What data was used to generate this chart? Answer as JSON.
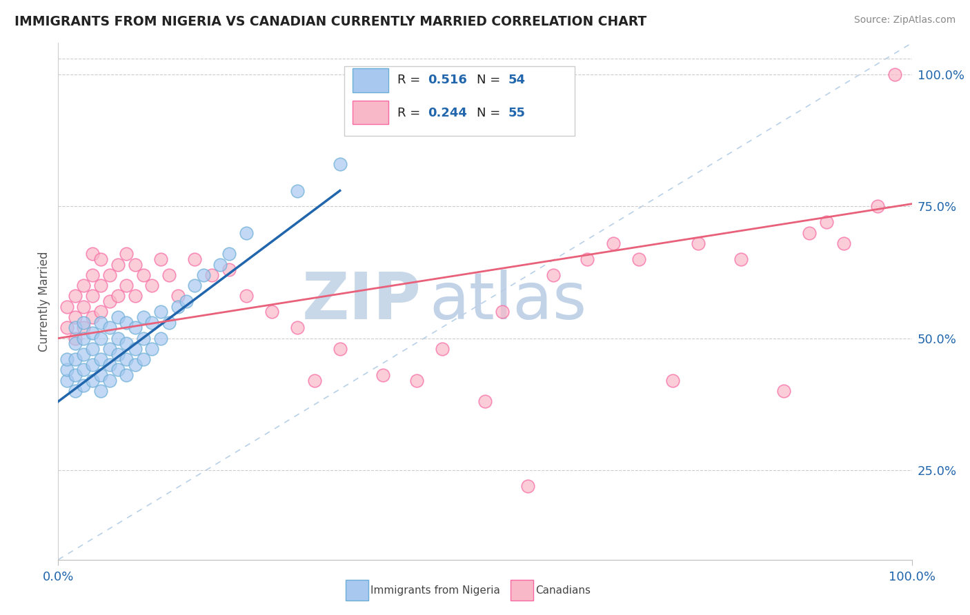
{
  "title": "IMMIGRANTS FROM NIGERIA VS CANADIAN CURRENTLY MARRIED CORRELATION CHART",
  "source_text": "Source: ZipAtlas.com",
  "ylabel": "Currently Married",
  "x_min": 0.0,
  "x_max": 1.0,
  "y_min": 0.08,
  "y_max": 1.06,
  "right_yticks": [
    0.25,
    0.5,
    0.75,
    1.0
  ],
  "right_yticklabels": [
    "25.0%",
    "50.0%",
    "75.0%",
    "100.0%"
  ],
  "blue_scatter_color": "#a8c8f0",
  "blue_scatter_edge": "#6baed6",
  "pink_scatter_color": "#f9b8c8",
  "pink_scatter_edge": "#f768a1",
  "blue_trend_color": "#2166ac",
  "pink_trend_color": "#e8607a",
  "diagonal_color": "#b8d0e8",
  "background_color": "#ffffff",
  "nigeria_x": [
    0.01,
    0.01,
    0.01,
    0.02,
    0.02,
    0.02,
    0.02,
    0.02,
    0.03,
    0.03,
    0.03,
    0.03,
    0.03,
    0.04,
    0.04,
    0.04,
    0.04,
    0.05,
    0.05,
    0.05,
    0.05,
    0.05,
    0.06,
    0.06,
    0.06,
    0.06,
    0.07,
    0.07,
    0.07,
    0.07,
    0.08,
    0.08,
    0.08,
    0.08,
    0.09,
    0.09,
    0.09,
    0.1,
    0.1,
    0.1,
    0.11,
    0.11,
    0.12,
    0.12,
    0.13,
    0.14,
    0.15,
    0.16,
    0.17,
    0.19,
    0.2,
    0.22,
    0.28,
    0.33
  ],
  "nigeria_y": [
    0.42,
    0.44,
    0.46,
    0.4,
    0.43,
    0.46,
    0.49,
    0.52,
    0.41,
    0.44,
    0.47,
    0.5,
    0.53,
    0.42,
    0.45,
    0.48,
    0.51,
    0.4,
    0.43,
    0.46,
    0.5,
    0.53,
    0.42,
    0.45,
    0.48,
    0.52,
    0.44,
    0.47,
    0.5,
    0.54,
    0.43,
    0.46,
    0.49,
    0.53,
    0.45,
    0.48,
    0.52,
    0.46,
    0.5,
    0.54,
    0.48,
    0.53,
    0.5,
    0.55,
    0.53,
    0.56,
    0.57,
    0.6,
    0.62,
    0.64,
    0.66,
    0.7,
    0.78,
    0.83
  ],
  "canada_x": [
    0.01,
    0.01,
    0.02,
    0.02,
    0.02,
    0.03,
    0.03,
    0.03,
    0.04,
    0.04,
    0.04,
    0.04,
    0.05,
    0.05,
    0.05,
    0.06,
    0.06,
    0.07,
    0.07,
    0.08,
    0.08,
    0.09,
    0.09,
    0.1,
    0.11,
    0.12,
    0.13,
    0.14,
    0.16,
    0.18,
    0.2,
    0.22,
    0.25,
    0.28,
    0.3,
    0.33,
    0.38,
    0.42,
    0.45,
    0.5,
    0.52,
    0.55,
    0.58,
    0.62,
    0.65,
    0.68,
    0.72,
    0.75,
    0.8,
    0.85,
    0.88,
    0.9,
    0.92,
    0.96,
    0.98
  ],
  "canada_y": [
    0.52,
    0.56,
    0.5,
    0.54,
    0.58,
    0.52,
    0.56,
    0.6,
    0.54,
    0.58,
    0.62,
    0.66,
    0.55,
    0.6,
    0.65,
    0.57,
    0.62,
    0.58,
    0.64,
    0.6,
    0.66,
    0.58,
    0.64,
    0.62,
    0.6,
    0.65,
    0.62,
    0.58,
    0.65,
    0.62,
    0.63,
    0.58,
    0.55,
    0.52,
    0.42,
    0.48,
    0.43,
    0.42,
    0.48,
    0.38,
    0.55,
    0.22,
    0.62,
    0.65,
    0.68,
    0.65,
    0.42,
    0.68,
    0.65,
    0.4,
    0.7,
    0.72,
    0.68,
    0.75,
    1.0
  ],
  "blue_trend_x0": 0.0,
  "blue_trend_y0": 0.38,
  "blue_trend_x1": 0.33,
  "blue_trend_y1": 0.78,
  "pink_trend_x0": 0.0,
  "pink_trend_y0": 0.5,
  "pink_trend_x1": 1.0,
  "pink_trend_y1": 0.755
}
